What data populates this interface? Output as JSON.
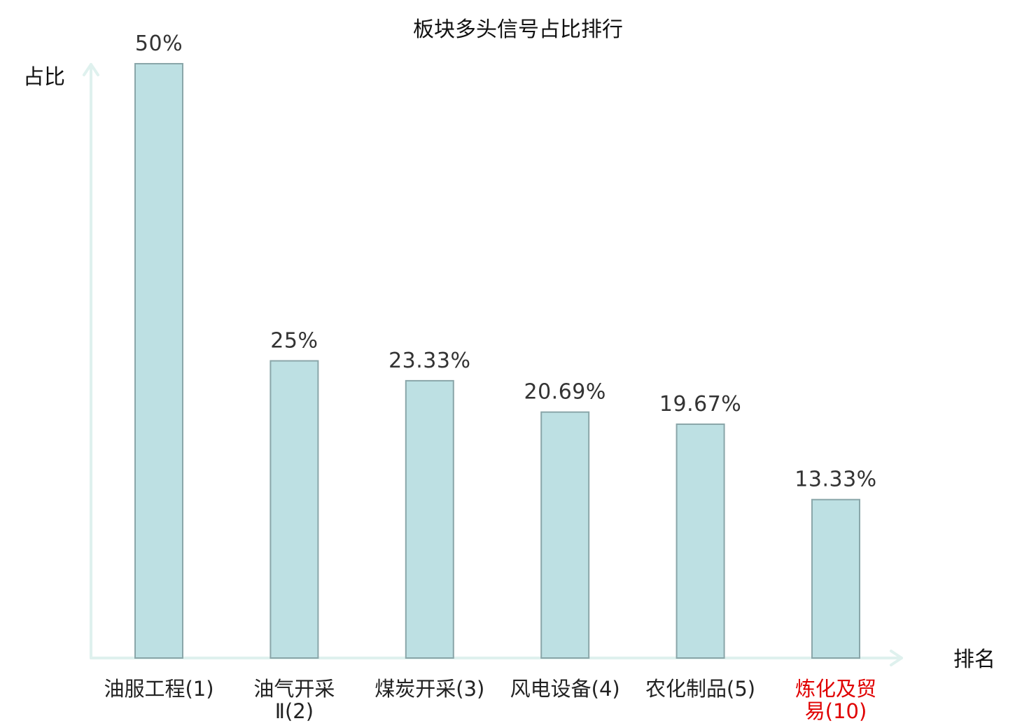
{
  "chart_data": {
    "type": "bar",
    "title": "板块多头信号占比排行",
    "xlabel": "排名",
    "ylabel": "占比",
    "categories": [
      [
        "油服工程(1)"
      ],
      [
        "油气开采",
        "Ⅱ(2)"
      ],
      [
        "煤炭开采(3)"
      ],
      [
        "风电设备(4)"
      ],
      [
        "农化制品(5)"
      ],
      [
        "炼化及贸",
        "易(10)"
      ]
    ],
    "values": [
      50,
      25,
      23.33,
      20.69,
      19.67,
      13.33
    ],
    "value_labels": [
      "50%",
      "25%",
      "23.33%",
      "20.69%",
      "19.67%",
      "13.33%"
    ],
    "highlight_index": 5,
    "ylim": [
      0,
      50
    ],
    "grid": false,
    "colors": {
      "bar_fill": "#bde0e3",
      "bar_stroke": "#8aa6a9",
      "axis": "#dff1ee",
      "highlight_text": "#e00000"
    }
  }
}
